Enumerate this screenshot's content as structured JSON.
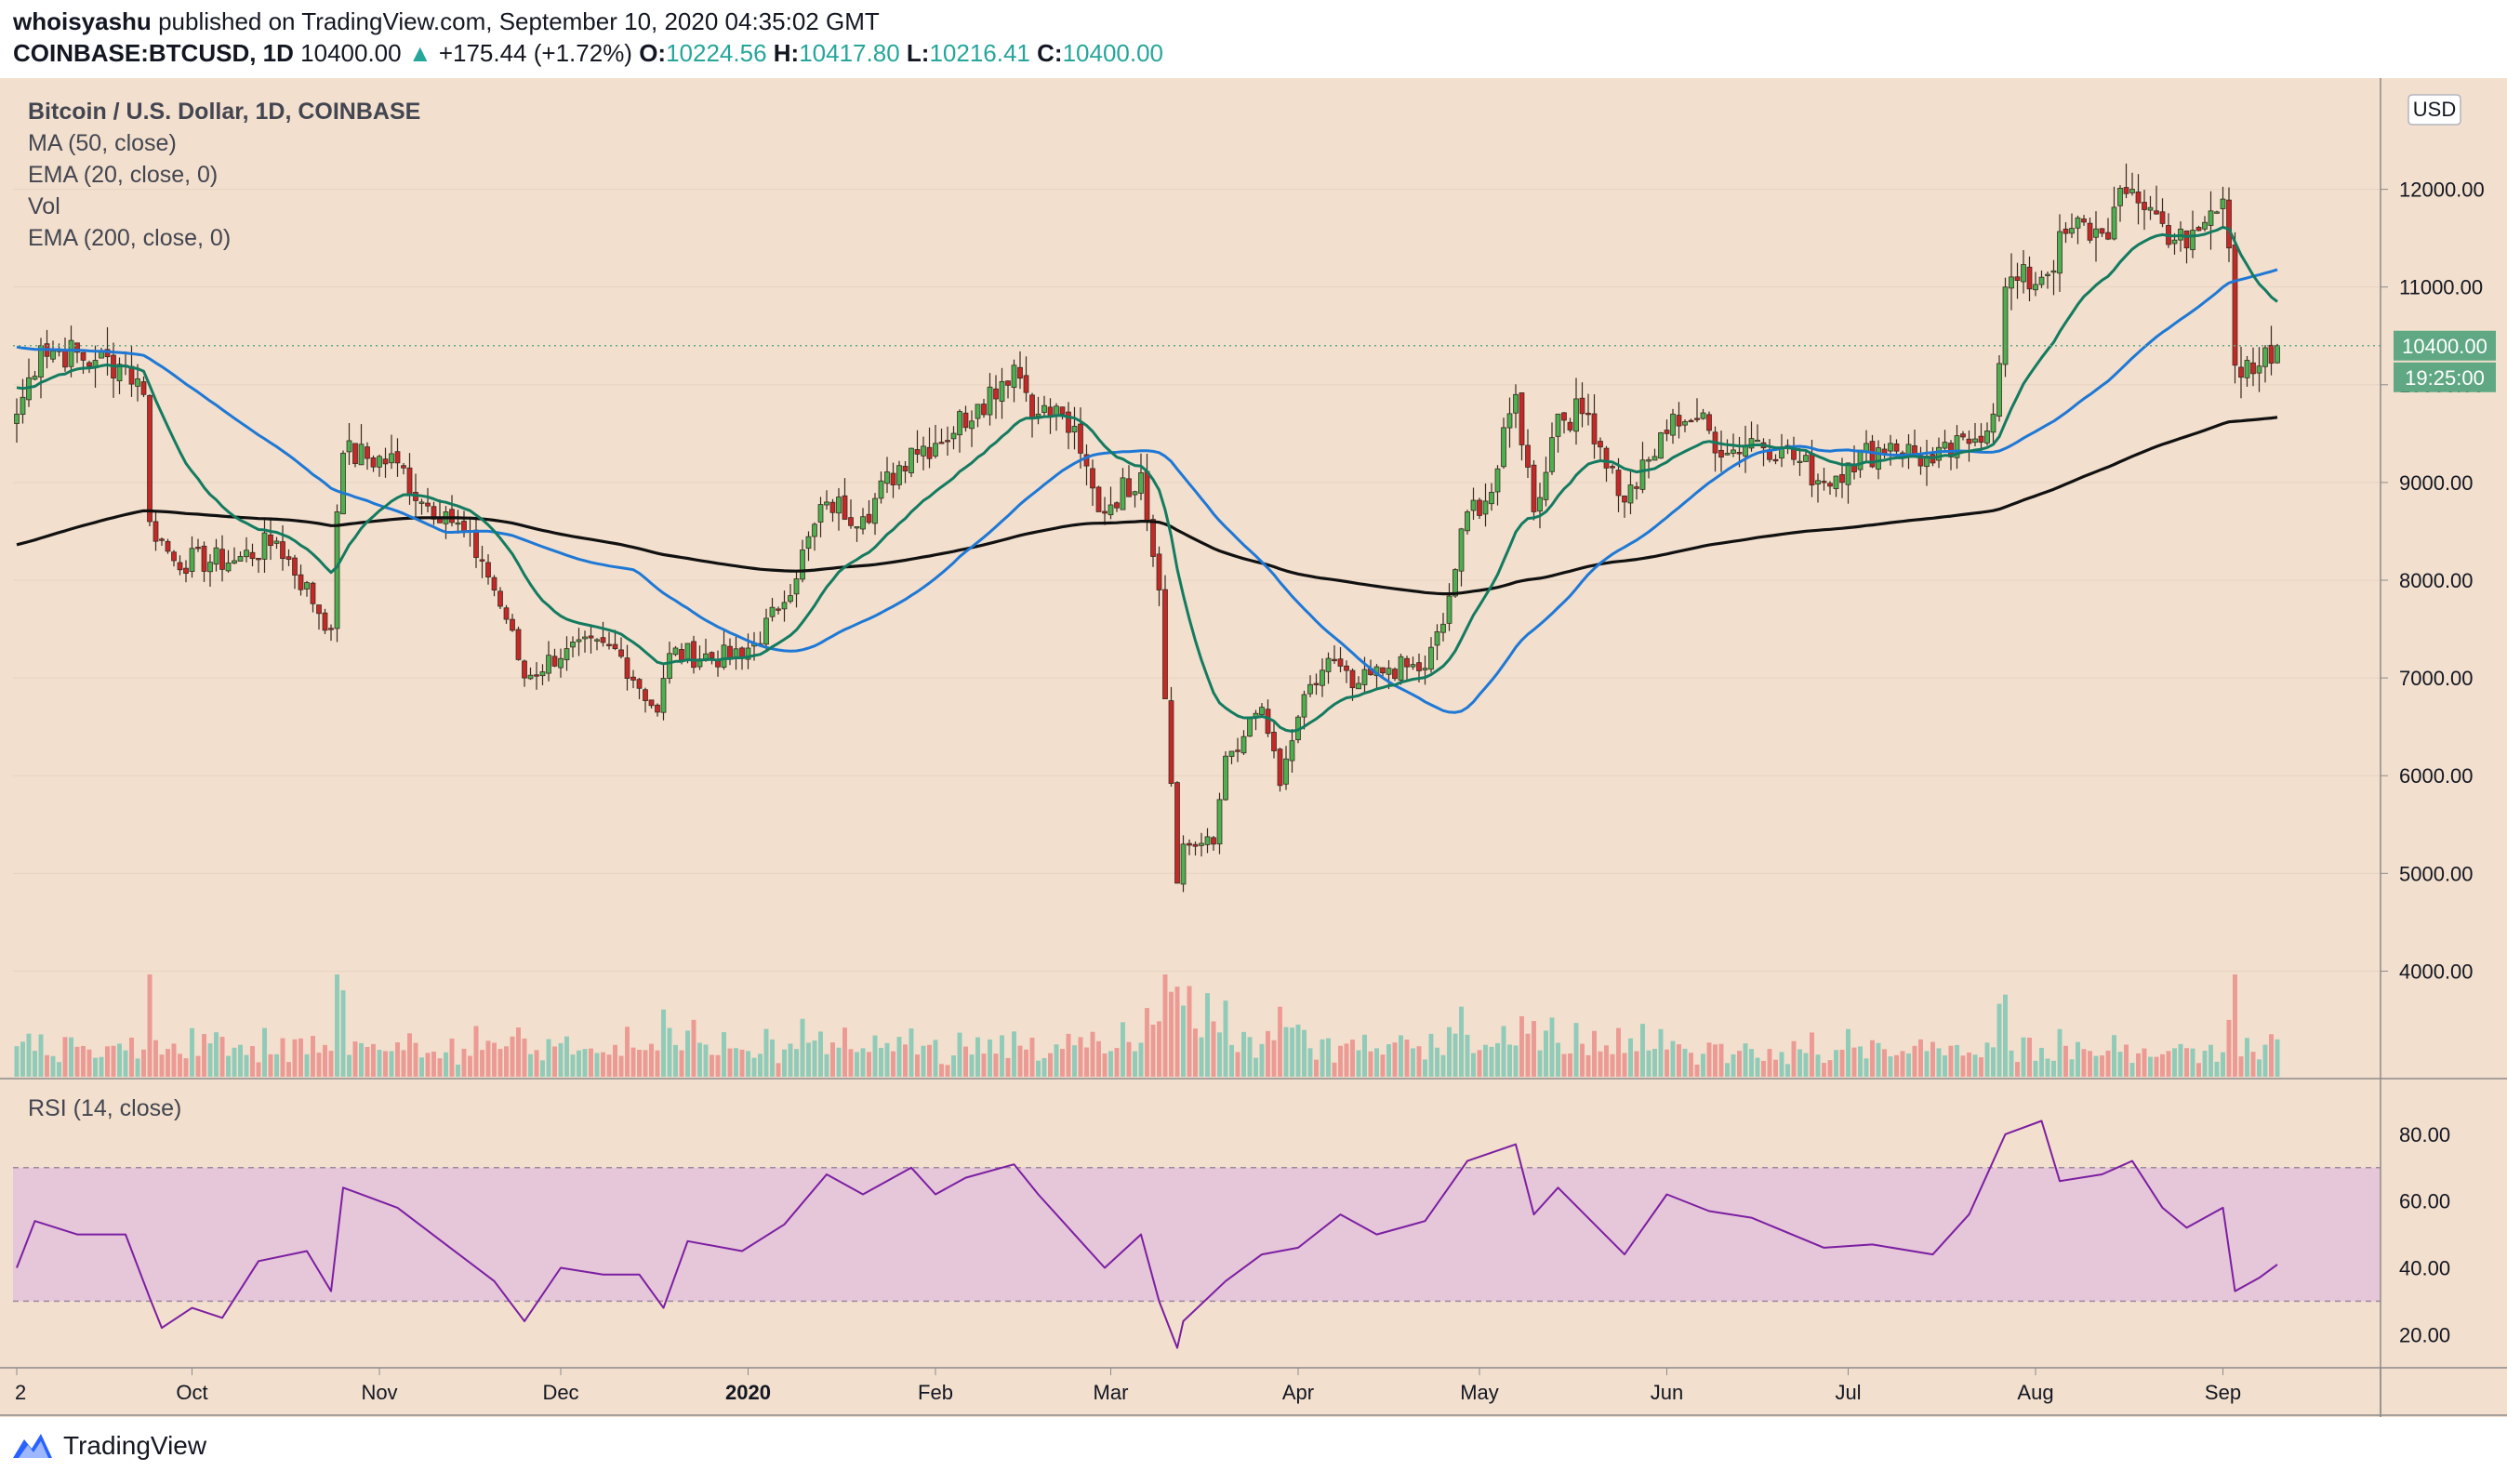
{
  "header": {
    "author": "whoisyashu",
    "published_text": "published on TradingView.com, September 10, 2020 04:35:02 GMT",
    "symbol": "COINBASE:BTCUSD, 1D",
    "last": "10400.00",
    "change": "+175.44 (+1.72%)",
    "o_label": "O:",
    "o_value": "10224.56",
    "h_label": "H:",
    "h_value": "10417.80",
    "l_label": "L:",
    "l_value": "10216.41",
    "c_label": "C:",
    "c_value": "10400.00"
  },
  "legend": {
    "title": "Bitcoin / U.S. Dollar, 1D, COINBASE",
    "ma50": "MA (50, close)",
    "ema20": "EMA (20, close, 0)",
    "vol": "Vol",
    "ema200": "EMA (200, close, 0)",
    "rsi": "RSI (14, close)"
  },
  "currency_badge": "USD",
  "price_badge": "10400.00",
  "countdown_badge": "19:25:00",
  "footer": {
    "brand": "TradingView"
  },
  "colors": {
    "background": "#f2dfcd",
    "up": "#26a69a",
    "down": "#ef5350",
    "candle_up": "#4caf50",
    "candle_down": "#c62828",
    "ma50": "#1e78d6",
    "ema20": "#137b60",
    "ema200": "#111111",
    "rsi": "#7b1fa2",
    "rsi_band": "#e6c6d9",
    "badge": "#5fa883"
  },
  "chart_data": [
    {
      "type": "candlestick",
      "title": "Bitcoin / U.S. Dollar, 1D, COINBASE",
      "y_unit": "USD",
      "ylim": [
        3500,
        12700
      ],
      "y_ticks": [
        4000,
        5000,
        6000,
        7000,
        8000,
        9000,
        10000,
        11000,
        12000
      ],
      "y_tick_labels": [
        "4000.00",
        "5000.00",
        "6000.00",
        "7000.00",
        "8000.00",
        "9000.00",
        "10000.00",
        "11000.00",
        "12000.00"
      ],
      "x_range": [
        "2019-09-02",
        "2020-09-10"
      ],
      "x_ticks": [
        "2019-09-02",
        "2019-10-01",
        "2019-11-01",
        "2019-12-01",
        "2020-01-01",
        "2020-02-01",
        "2020-03-01",
        "2020-04-01",
        "2020-05-01",
        "2020-06-01",
        "2020-07-01",
        "2020-08-01",
        "2020-09-01"
      ],
      "x_tick_labels": [
        "2",
        "Oct",
        "Nov",
        "Dec",
        "2020",
        "Feb",
        "Mar",
        "Apr",
        "May",
        "Jun",
        "Jul",
        "Aug",
        "Sep"
      ],
      "close_anchors": [
        [
          "2019-09-02",
          9700
        ],
        [
          "2019-09-06",
          10400
        ],
        [
          "2019-09-15",
          10250
        ],
        [
          "2019-09-20",
          10200
        ],
        [
          "2019-09-23",
          9900
        ],
        [
          "2019-09-24",
          8600
        ],
        [
          "2019-09-28",
          8200
        ],
        [
          "2019-10-08",
          8200
        ],
        [
          "2019-10-15",
          8400
        ],
        [
          "2019-10-24",
          7500
        ],
        [
          "2019-10-25",
          8700
        ],
        [
          "2019-10-26",
          9300
        ],
        [
          "2019-11-04",
          9200
        ],
        [
          "2019-11-08",
          8800
        ],
        [
          "2019-11-12",
          8700
        ],
        [
          "2019-11-18",
          8200
        ],
        [
          "2019-11-22",
          7600
        ],
        [
          "2019-11-25",
          7000
        ],
        [
          "2019-12-02",
          7300
        ],
        [
          "2019-12-10",
          7300
        ],
        [
          "2019-12-17",
          6650
        ],
        [
          "2019-12-19",
          7250
        ],
        [
          "2019-12-31",
          7200
        ],
        [
          "2020-01-06",
          7700
        ],
        [
          "2020-01-14",
          8800
        ],
        [
          "2020-01-20",
          8650
        ],
        [
          "2020-01-28",
          9350
        ],
        [
          "2020-02-01",
          9400
        ],
        [
          "2020-02-08",
          9800
        ],
        [
          "2020-02-14",
          10200
        ],
        [
          "2020-02-18",
          9700
        ],
        [
          "2020-02-22",
          9700
        ],
        [
          "2020-02-25",
          9300
        ],
        [
          "2020-02-28",
          8700
        ],
        [
          "2020-03-06",
          9100
        ],
        [
          "2020-03-09",
          7900
        ],
        [
          "2020-03-12",
          4900
        ],
        [
          "2020-03-13",
          5300
        ],
        [
          "2020-03-18",
          5300
        ],
        [
          "2020-03-20",
          6200
        ],
        [
          "2020-03-23",
          6400
        ],
        [
          "2020-03-26",
          6700
        ],
        [
          "2020-03-29",
          5900
        ],
        [
          "2020-04-01",
          6600
        ],
        [
          "2020-04-06",
          7200
        ],
        [
          "2020-04-10",
          6900
        ],
        [
          "2020-04-16",
          7100
        ],
        [
          "2020-04-22",
          7100
        ],
        [
          "2020-04-25",
          7550
        ],
        [
          "2020-04-29",
          8700
        ],
        [
          "2020-05-03",
          8900
        ],
        [
          "2020-05-07",
          9900
        ],
        [
          "2020-05-10",
          8700
        ],
        [
          "2020-05-14",
          9700
        ],
        [
          "2020-05-19",
          9700
        ],
        [
          "2020-05-25",
          8800
        ],
        [
          "2020-06-01",
          9500
        ],
        [
          "2020-06-02",
          9700
        ],
        [
          "2020-06-06",
          9650
        ],
        [
          "2020-06-11",
          9300
        ],
        [
          "2020-06-15",
          9450
        ],
        [
          "2020-06-20",
          9350
        ],
        [
          "2020-06-27",
          9000
        ],
        [
          "2020-07-01",
          9200
        ],
        [
          "2020-07-08",
          9400
        ],
        [
          "2020-07-15",
          9200
        ],
        [
          "2020-07-21",
          9400
        ],
        [
          "2020-07-25",
          9700
        ],
        [
          "2020-07-27",
          11000
        ],
        [
          "2020-08-02",
          11100
        ],
        [
          "2020-08-07",
          11600
        ],
        [
          "2020-08-12",
          11550
        ],
        [
          "2020-08-17",
          12000
        ],
        [
          "2020-08-22",
          11650
        ],
        [
          "2020-08-26",
          11400
        ],
        [
          "2020-09-01",
          11900
        ],
        [
          "2020-09-02",
          11400
        ],
        [
          "2020-09-03",
          10200
        ],
        [
          "2020-09-05",
          10250
        ],
        [
          "2020-09-09",
          10220
        ],
        [
          "2020-09-10",
          10400
        ]
      ],
      "series": [
        {
          "name": "MA (50, close)",
          "kind": "moving-average",
          "period": 50
        },
        {
          "name": "EMA (20, close, 0)",
          "kind": "exponential-moving-average",
          "period": 20
        },
        {
          "name": "EMA (200, close, 0)",
          "kind": "exponential-moving-average",
          "period": 200
        },
        {
          "name": "Vol",
          "kind": "volume-histogram"
        }
      ],
      "last_price": 10400.0
    },
    {
      "type": "line",
      "title": "RSI (14, close)",
      "ylim": [
        12,
        90
      ],
      "y_ticks": [
        20,
        40,
        60,
        80
      ],
      "y_tick_labels": [
        "20.00",
        "40.00",
        "60.00",
        "80.00"
      ],
      "band": [
        30,
        70
      ],
      "series": [
        {
          "name": "RSI (14, close)",
          "values": [
            [
              "2019-09-02",
              40
            ],
            [
              "2019-09-05",
              54
            ],
            [
              "2019-09-12",
              50
            ],
            [
              "2019-09-20",
              50
            ],
            [
              "2019-09-24",
              31
            ],
            [
              "2019-09-26",
              22
            ],
            [
              "2019-10-01",
              28
            ],
            [
              "2019-10-06",
              25
            ],
            [
              "2019-10-12",
              42
            ],
            [
              "2019-10-20",
              45
            ],
            [
              "2019-10-24",
              33
            ],
            [
              "2019-10-26",
              64
            ],
            [
              "2019-11-04",
              58
            ],
            [
              "2019-11-12",
              47
            ],
            [
              "2019-11-20",
              36
            ],
            [
              "2019-11-25",
              24
            ],
            [
              "2019-12-01",
              40
            ],
            [
              "2019-12-08",
              38
            ],
            [
              "2019-12-14",
              38
            ],
            [
              "2019-12-18",
              28
            ],
            [
              "2019-12-22",
              48
            ],
            [
              "2019-12-31",
              45
            ],
            [
              "2020-01-07",
              53
            ],
            [
              "2020-01-14",
              68
            ],
            [
              "2020-01-20",
              62
            ],
            [
              "2020-01-28",
              70
            ],
            [
              "2020-02-01",
              62
            ],
            [
              "2020-02-06",
              67
            ],
            [
              "2020-02-14",
              71
            ],
            [
              "2020-02-18",
              62
            ],
            [
              "2020-02-25",
              48
            ],
            [
              "2020-02-29",
              40
            ],
            [
              "2020-03-06",
              50
            ],
            [
              "2020-03-09",
              30
            ],
            [
              "2020-03-12",
              16
            ],
            [
              "2020-03-13",
              24
            ],
            [
              "2020-03-20",
              36
            ],
            [
              "2020-03-26",
              44
            ],
            [
              "2020-04-01",
              46
            ],
            [
              "2020-04-08",
              56
            ],
            [
              "2020-04-14",
              50
            ],
            [
              "2020-04-22",
              54
            ],
            [
              "2020-04-29",
              72
            ],
            [
              "2020-05-07",
              77
            ],
            [
              "2020-05-10",
              56
            ],
            [
              "2020-05-14",
              64
            ],
            [
              "2020-05-25",
              44
            ],
            [
              "2020-06-01",
              62
            ],
            [
              "2020-06-08",
              57
            ],
            [
              "2020-06-15",
              55
            ],
            [
              "2020-06-27",
              46
            ],
            [
              "2020-07-05",
              47
            ],
            [
              "2020-07-15",
              44
            ],
            [
              "2020-07-21",
              56
            ],
            [
              "2020-07-27",
              80
            ],
            [
              "2020-08-02",
              84
            ],
            [
              "2020-08-05",
              66
            ],
            [
              "2020-08-12",
              68
            ],
            [
              "2020-08-17",
              72
            ],
            [
              "2020-08-22",
              58
            ],
            [
              "2020-08-26",
              52
            ],
            [
              "2020-09-01",
              58
            ],
            [
              "2020-09-03",
              33
            ],
            [
              "2020-09-07",
              37
            ],
            [
              "2020-09-10",
              41
            ]
          ]
        }
      ]
    }
  ]
}
